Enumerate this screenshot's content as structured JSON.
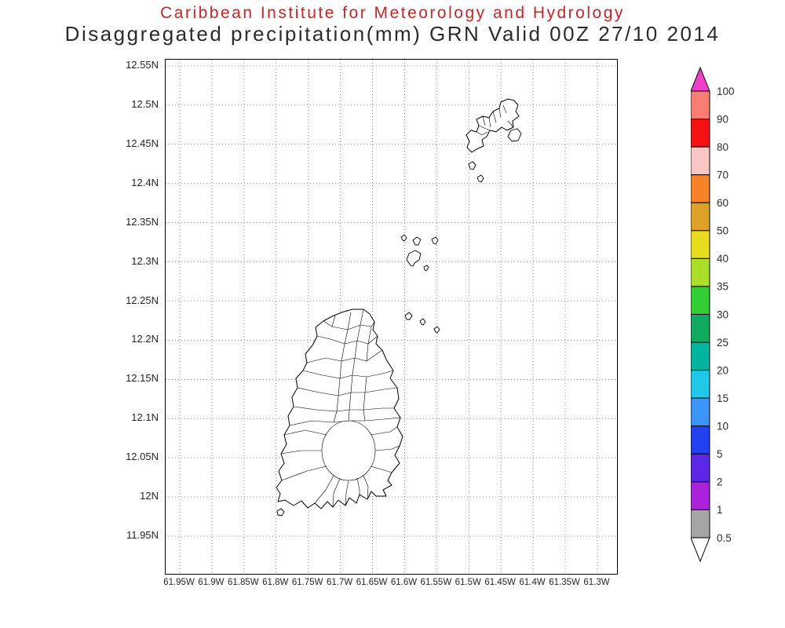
{
  "header": {
    "title": "Caribbean Institute for Meteorology and Hydrology",
    "subtitle": "Disaggregated precipitation(mm) GRN Valid 00Z 27/10 2014",
    "title_color": "#c62626",
    "subtitle_color": "#2b2b2b"
  },
  "plot": {
    "grid_style": "dotted",
    "y_axis": {
      "label_type": "latitude",
      "ticks": [
        "12.55N",
        "12.5N",
        "12.45N",
        "12.4N",
        "12.35N",
        "12.3N",
        "12.25N",
        "12.2N",
        "12.15N",
        "12.1N",
        "12.05N",
        "12N",
        "11.95N"
      ]
    },
    "x_axis": {
      "label_type": "longitude",
      "ticks": [
        "61.95W",
        "61.9W",
        "61.85W",
        "61.8W",
        "61.75W",
        "61.7W",
        "61.65W",
        "61.6W",
        "61.55W",
        "61.5W",
        "61.45W",
        "61.4W",
        "61.35W",
        "61.3W"
      ]
    },
    "features": [
      "Grenada coastline with watershed boundaries",
      "Glover Island",
      "Ronde Island group",
      "Carriacou",
      "Petite Martinique"
    ]
  },
  "colorbar": {
    "units": "mm",
    "levels": [
      "100",
      "90",
      "80",
      "70",
      "60",
      "50",
      "40",
      "35",
      "30",
      "25",
      "20",
      "15",
      "10",
      "5",
      "2",
      "1",
      "0.5"
    ],
    "top_arrow_color": "#ef3fc8",
    "bottom_arrow_color": "#ffffff",
    "segment_colors": [
      "#fa7d73",
      "#f51111",
      "#fbc6c6",
      "#f58228",
      "#dfa028",
      "#e8dc1e",
      "#aade28",
      "#32cd32",
      "#0fa95f",
      "#00b4a0",
      "#1ec8e6",
      "#3c96fa",
      "#2341f0",
      "#5a28e6",
      "#aa23dc",
      "#a5a5a5"
    ]
  }
}
